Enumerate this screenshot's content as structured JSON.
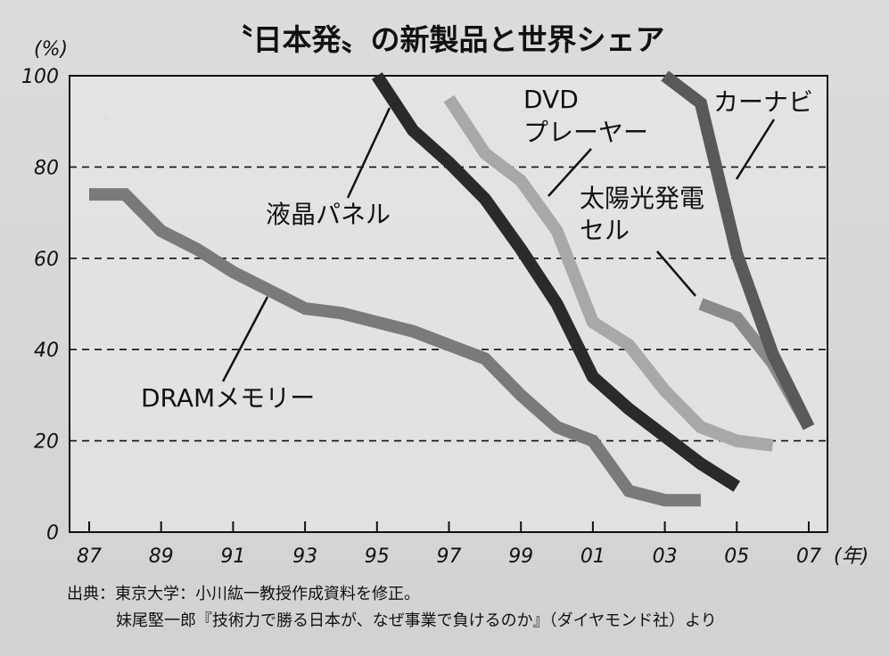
{
  "chart_data": {
    "type": "line",
    "title": "〝日本発〟の新製品と世界シェア",
    "y_unit": "(%)",
    "x_unit": "(年)",
    "ylim": [
      0,
      100
    ],
    "y_ticks": [
      0,
      20,
      40,
      60,
      80,
      100
    ],
    "x_tick_labels": [
      "87",
      "89",
      "91",
      "93",
      "95",
      "97",
      "99",
      "01",
      "03",
      "05",
      "07"
    ],
    "x_tick_years": [
      1987,
      1989,
      1991,
      1993,
      1995,
      1997,
      1999,
      2001,
      2003,
      2005,
      2007
    ],
    "xlim": [
      1987,
      2007
    ],
    "grid": "dashed horizontal",
    "series": [
      {
        "name": "DRAMメモリー",
        "color": "#7a7a7a",
        "x": [
          1987,
          1988,
          1989,
          1990,
          1991,
          1992,
          1993,
          1994,
          1995,
          1996,
          1997,
          1998,
          1999,
          2000,
          2001,
          2002,
          2003,
          2004
        ],
        "y": [
          74,
          74,
          66,
          62,
          57,
          53,
          49,
          48,
          46,
          44,
          41,
          38,
          30,
          23,
          20,
          9,
          7,
          7
        ]
      },
      {
        "name": "液晶パネル",
        "color": "#2a2a2a",
        "x": [
          1995,
          1996,
          1997,
          1998,
          1999,
          2000,
          2001,
          2002,
          2003,
          2004,
          2005
        ],
        "y": [
          100,
          88,
          81,
          73,
          62,
          50,
          34,
          27,
          21,
          15,
          10
        ]
      },
      {
        "name": "DVDプレーヤー",
        "color": "#a8a8a8",
        "x": [
          1997,
          1998,
          1999,
          2000,
          2001,
          2002,
          2003,
          2004,
          2005,
          2006
        ],
        "y": [
          95,
          83,
          77,
          66,
          46,
          41,
          31,
          23,
          20,
          19
        ]
      },
      {
        "name": "太陽光発電セル",
        "color": "#8a8a8a",
        "x": [
          2004,
          2005,
          2006,
          2007
        ],
        "y": [
          50,
          47,
          37,
          23
        ]
      },
      {
        "name": "カーナビ",
        "color": "#595959",
        "x": [
          2003,
          2004,
          2005,
          2006,
          2007
        ],
        "y": [
          100,
          94,
          61,
          39,
          23
        ]
      }
    ]
  },
  "labels": {
    "dram": "DRAMメモリー",
    "lcd": "液晶パネル",
    "dvd_line1": "DVD",
    "dvd_line2": "プレーヤー",
    "solar_line1": "太陽光発電",
    "solar_line2": "セル",
    "carnavi": "カーナビ"
  },
  "source": {
    "line1": "出典：東京大学：小川紘一教授作成資料を修正。",
    "line2": "妹尾堅一郎『技術力で勝る日本が、なぜ事業で負けるのか』（ダイヤモンド社）より"
  }
}
